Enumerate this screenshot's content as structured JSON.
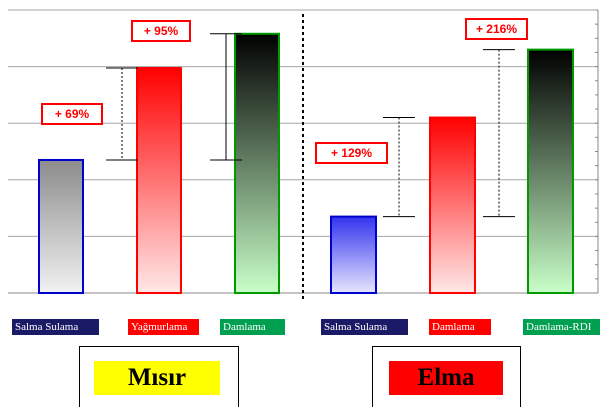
{
  "chart_data": [
    {
      "type": "bar",
      "group_title": "Mısır",
      "categories": [
        "Salma Sulama",
        "Yağmurlama",
        "Damlama"
      ],
      "values": [
        4.7,
        7.95,
        9.16
      ],
      "colors": [
        "#0000cc",
        "#ff0000",
        "#009900"
      ],
      "annotations": [
        {
          "text": "+ 69%",
          "from": 0,
          "to": 1
        },
        {
          "text": "+ 95%",
          "from": 0,
          "to": 2
        }
      ],
      "ylim": [
        0,
        10
      ],
      "grid": true
    },
    {
      "type": "bar",
      "group_title": "Elma",
      "categories": [
        "Salma Sulama",
        "Damlama",
        "Damlama-RDI"
      ],
      "values": [
        2.7,
        6.2,
        8.6
      ],
      "colors": [
        "#0000cc",
        "#ff0000",
        "#009900"
      ],
      "annotations": [
        {
          "text": "+ 129%",
          "from": 0,
          "to": 1
        },
        {
          "text": "+ 216%",
          "from": 0,
          "to": 2
        }
      ],
      "ylim": [
        0,
        10
      ],
      "grid": true
    }
  ],
  "legend": [
    {
      "label": "Salma Sulama",
      "color": "#1a1a66"
    },
    {
      "label": "Yağmurlama",
      "color": "#ff0000"
    },
    {
      "label": "Damlama",
      "color": "#00a050"
    },
    {
      "label": "Salma Sulama",
      "color": "#1a1a66"
    },
    {
      "label": "Damlama",
      "color": "#ff0000"
    },
    {
      "label": "Damlama-RDI",
      "color": "#00a050"
    }
  ],
  "crop_tags": [
    {
      "label": "Mısır",
      "color": "#ffff00"
    },
    {
      "label": "Elma",
      "color": "#ff0000"
    }
  ]
}
